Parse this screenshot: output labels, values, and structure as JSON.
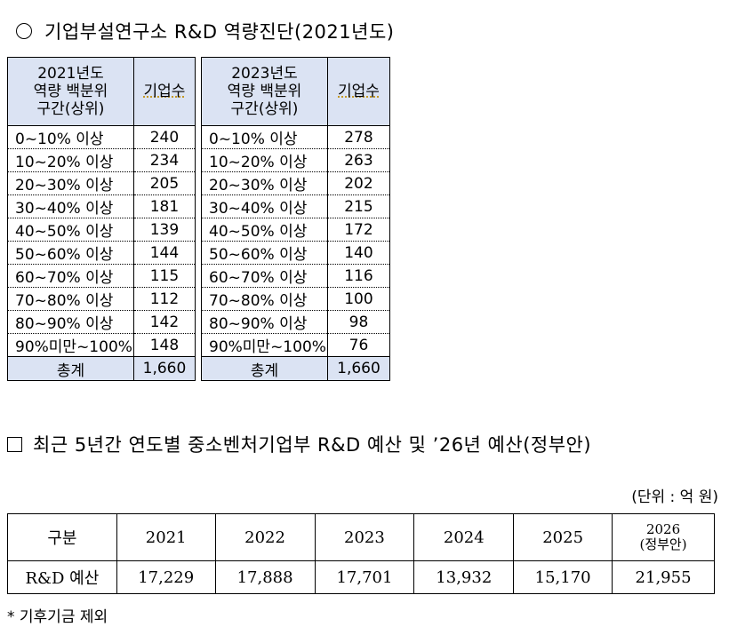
{
  "section1": {
    "title": "기업부설연구소 R&D 역량진단(2021년도)"
  },
  "table2021": {
    "header_label": [
      "2021년도",
      "역량 백분위",
      "구간(상위)"
    ],
    "header_count": "기업수",
    "rows": [
      {
        "label": "0~10% 이상",
        "value": "240"
      },
      {
        "label": "10~20% 이상",
        "value": "234"
      },
      {
        "label": "20~30% 이상",
        "value": "205"
      },
      {
        "label": "30~40% 이상",
        "value": "181"
      },
      {
        "label": "40~50% 이상",
        "value": "139"
      },
      {
        "label": "50~60% 이상",
        "value": "144"
      },
      {
        "label": "60~70% 이상",
        "value": "115"
      },
      {
        "label": "70~80% 이상",
        "value": "112"
      },
      {
        "label": "80~90% 이상",
        "value": "142"
      },
      {
        "label": "90%미만~100%",
        "value": "148"
      }
    ],
    "total_label": "총계",
    "total_value": "1,660"
  },
  "table2023": {
    "header_label": [
      "2023년도",
      "역량 백분위",
      "구간(상위)"
    ],
    "header_count": "기업수",
    "rows": [
      {
        "label": "0~10% 이상",
        "value": "278"
      },
      {
        "label": "10~20% 이상",
        "value": "263"
      },
      {
        "label": "20~30% 이상",
        "value": "202"
      },
      {
        "label": "30~40% 이상",
        "value": "215"
      },
      {
        "label": "40~50% 이상",
        "value": "172"
      },
      {
        "label": "50~60% 이상",
        "value": "140"
      },
      {
        "label": "60~70% 이상",
        "value": "116"
      },
      {
        "label": "70~80% 이상",
        "value": "100"
      },
      {
        "label": "80~90% 이상",
        "value": "98"
      },
      {
        "label": "90%미만~100%",
        "value": "76"
      }
    ],
    "total_label": "총계",
    "total_value": "1,660"
  },
  "section2": {
    "title": "최근 5년간 연도별 중소벤처기업부 R&D 예산 및 ’26년 예산(정부안)",
    "unit": "(단위 : 억 원)"
  },
  "budget": {
    "head_label": "구분",
    "years": [
      "2021",
      "2022",
      "2023",
      "2024",
      "2025"
    ],
    "year_2026": "2026",
    "year_2026_note": "(정부안)",
    "row_label": "R&D 예산",
    "values": [
      "17,229",
      "17,888",
      "17,701",
      "13,932",
      "15,170",
      "21,955"
    ]
  },
  "footnote": "* 기후기금 제외",
  "colors": {
    "header_bg": "#dbe3f3"
  }
}
